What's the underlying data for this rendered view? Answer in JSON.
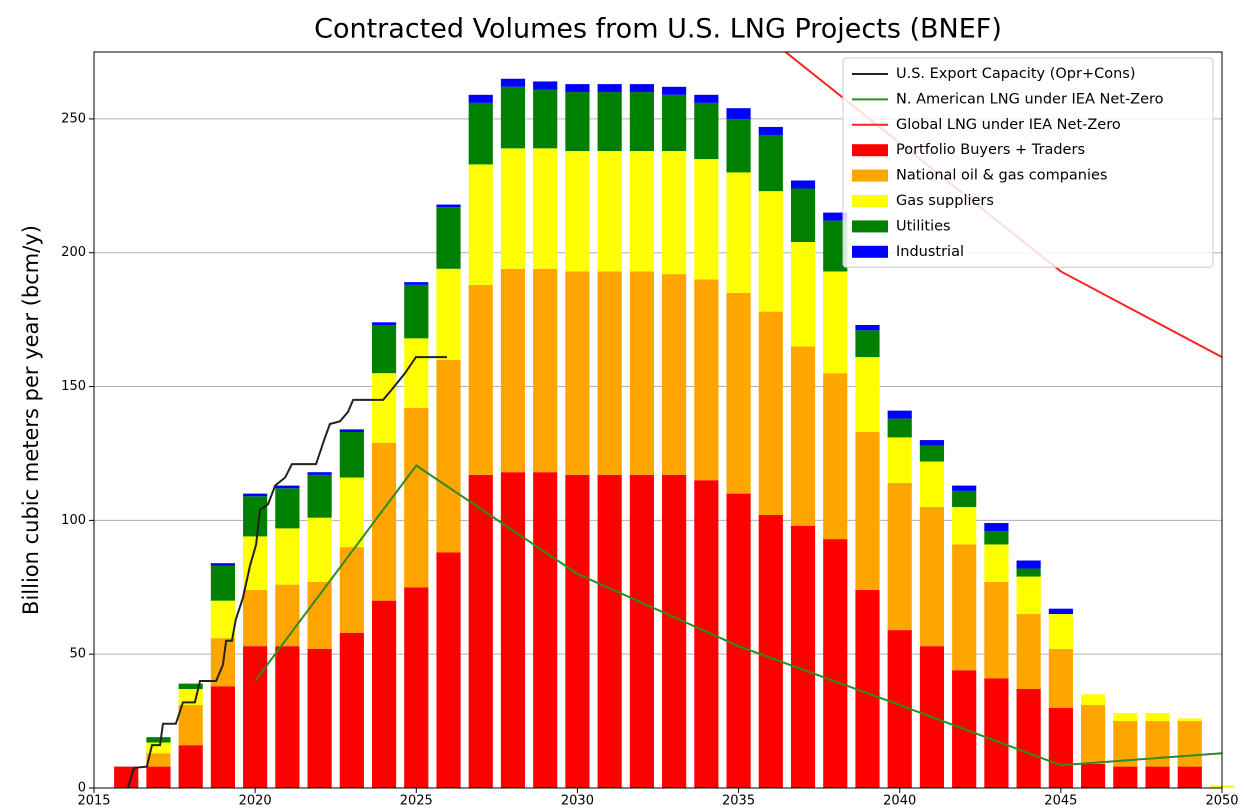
{
  "chart_data": {
    "type": "bar",
    "stacked": true,
    "title": "Contracted Volumes from U.S. LNG Projects (BNEF)",
    "y_label": "Billion cubic meters per year (bcm/y)",
    "x": [
      2016,
      2017,
      2018,
      2019,
      2020,
      2021,
      2022,
      2023,
      2024,
      2025,
      2026,
      2027,
      2028,
      2029,
      2030,
      2031,
      2032,
      2033,
      2034,
      2035,
      2036,
      2037,
      2038,
      2039,
      2040,
      2041,
      2042,
      2043,
      2044,
      2045,
      2046,
      2047,
      2048,
      2049,
      2050
    ],
    "xlim": [
      2015,
      2050
    ],
    "xticks": [
      2015,
      2020,
      2025,
      2030,
      2035,
      2040,
      2045,
      2050
    ],
    "ylim": [
      0,
      275
    ],
    "yticks": [
      0,
      50,
      100,
      150,
      200,
      250
    ],
    "grid": "y",
    "legend": "upper right",
    "series": [
      {
        "name": "Portfolio Buyers + Traders",
        "color": "#ff0000",
        "values": [
          8,
          8,
          16,
          38,
          53,
          53,
          52,
          58,
          70,
          75,
          88,
          117,
          118,
          118,
          117,
          117,
          117,
          117,
          115,
          110,
          102,
          98,
          93,
          74,
          59,
          53,
          44,
          41,
          37,
          30,
          9,
          8,
          8,
          8,
          0
        ]
      },
      {
        "name": "National oil & gas companies",
        "color": "#ffa500",
        "values": [
          0,
          5,
          15,
          18,
          21,
          23,
          25,
          32,
          59,
          67,
          72,
          71,
          76,
          76,
          76,
          76,
          76,
          75,
          75,
          75,
          76,
          67,
          62,
          59,
          55,
          52,
          47,
          36,
          28,
          22,
          22,
          17,
          17,
          17,
          0
        ]
      },
      {
        "name": "Gas suppliers",
        "color": "#ffff00",
        "values": [
          0,
          4,
          6,
          14,
          20,
          21,
          24,
          26,
          26,
          26,
          34,
          45,
          45,
          45,
          45,
          45,
          45,
          46,
          45,
          45,
          45,
          39,
          38,
          28,
          17,
          17,
          14,
          14,
          14,
          13,
          4,
          3,
          3,
          1,
          1
        ]
      },
      {
        "name": "Utilities",
        "color": "#008000",
        "values": [
          0,
          2,
          2,
          13,
          15,
          15,
          16,
          17,
          18,
          20,
          23,
          23,
          23,
          22,
          22,
          22,
          22,
          21,
          21,
          20,
          21,
          20,
          19,
          10,
          7,
          6,
          6,
          5,
          3,
          0,
          0,
          0,
          0,
          0,
          0
        ]
      },
      {
        "name": "Industrial",
        "color": "#0000ff",
        "values": [
          0,
          0,
          0,
          1,
          1,
          1,
          1,
          1,
          1,
          1,
          1,
          3,
          3,
          3,
          3,
          3,
          3,
          3,
          3,
          4,
          3,
          3,
          3,
          2,
          3,
          2,
          2,
          3,
          3,
          2,
          0,
          0,
          0,
          0,
          0
        ]
      }
    ],
    "lines": [
      {
        "name": "U.S. Export Capacity (Opr+Cons)",
        "color": "#222222",
        "x": [
          2016.05,
          2016.24,
          2016.64,
          2016.8,
          2017.05,
          2017.14,
          2017.54,
          2017.76,
          2018.13,
          2018.23,
          2018.29,
          2018.79,
          2019.0,
          2019.1,
          2019.28,
          2019.4,
          2019.62,
          2019.84,
          2020.03,
          2020.15,
          2020.4,
          2020.62,
          2020.93,
          2021.14,
          2021.89,
          2022.14,
          2022.32,
          2022.63,
          2022.88,
          2023.04,
          2023.97,
          2024.18,
          2024.65,
          2024.99,
          2025.95
        ],
        "values": [
          0,
          7.5,
          8,
          16,
          16,
          24,
          24,
          32,
          32,
          37,
          40,
          40,
          46,
          55,
          55,
          63,
          71,
          83,
          91,
          104,
          106,
          113,
          116,
          121,
          121,
          130,
          136,
          137,
          140.5,
          145,
          145,
          148,
          155,
          161,
          161
        ]
      },
      {
        "name": "N. American LNG under IEA Net-Zero",
        "color": "#2e8b22",
        "x": [
          2020,
          2025,
          2030,
          2035,
          2040,
          2045,
          2050
        ],
        "values": [
          40,
          120.5,
          80,
          53,
          31,
          8.5,
          13
        ]
      },
      {
        "name": "Global LNG under IEA Net-Zero",
        "color": "#ff2020",
        "x": [
          2035,
          2040,
          2045,
          2050
        ],
        "values": [
          289,
          241,
          193,
          161
        ]
      }
    ]
  }
}
